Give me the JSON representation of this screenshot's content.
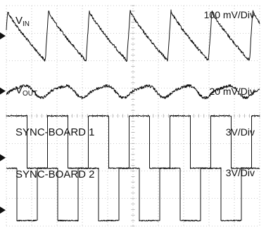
{
  "chart_data": {
    "type": "line",
    "title": "",
    "xlabel": "",
    "ylabel": "",
    "grid": true,
    "x_divisions": 10,
    "y_divisions": 8,
    "channels": [
      {
        "name": "V",
        "name_sub": "IN",
        "scale": "100 mV/Div",
        "waveform": "sawtooth",
        "cycles": 6.2,
        "phase": 0.05,
        "amplitude_div": 0.9,
        "center_div": 1.1,
        "noise_div": 0.05
      },
      {
        "name": "V",
        "name_sub": "OUT",
        "scale": "20 mV/Div",
        "waveform": "ripple",
        "cycles": 6.2,
        "phase": 0.05,
        "amplitude_div": 0.25,
        "center_div": 3.1,
        "noise_div": 0.05
      },
      {
        "name": "SYNC-BOARD 1",
        "name_sub": "",
        "scale": "3V/Div",
        "waveform": "square",
        "cycles": 6.2,
        "phase": 0.0,
        "amplitude_div": 0.95,
        "center_div": 4.95,
        "noise_div": 0.02
      },
      {
        "name": "SYNC-BOARD 2",
        "name_sub": "",
        "scale": "3V/Div",
        "waveform": "square",
        "cycles": 6.2,
        "phase": 0.25,
        "amplitude_div": 0.95,
        "center_div": 6.85,
        "noise_div": 0.02
      }
    ]
  },
  "colors": {
    "trace": "#111111",
    "grid": "#9a9a9a",
    "background": "#ffffff"
  }
}
